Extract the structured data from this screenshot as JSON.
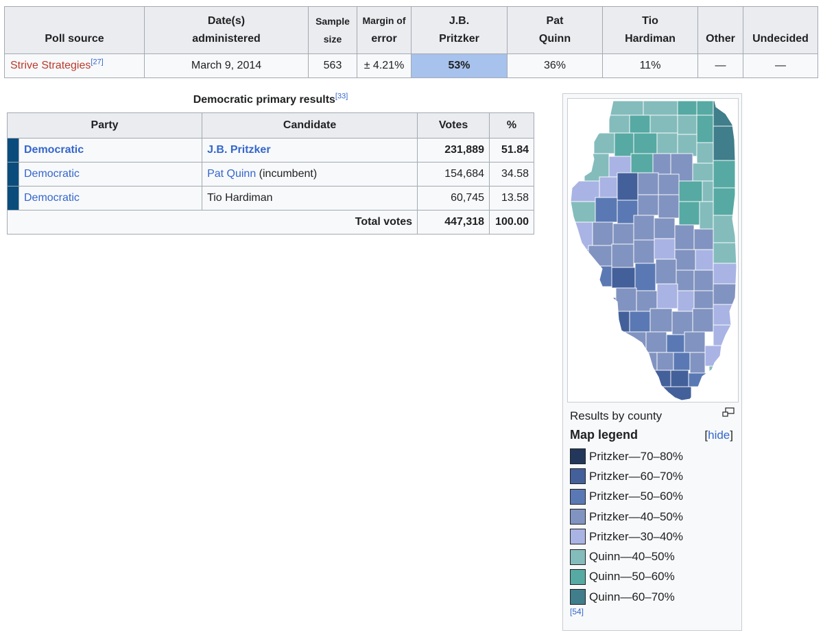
{
  "poll_table": {
    "headers": {
      "source": "Poll source",
      "date_line1": "Date(s)",
      "date_line2": "administered",
      "sample_line1": "Sample",
      "sample_line2": "size",
      "margin_line1": "Margin of",
      "margin_line2": "error",
      "c1_line1": "J.B.",
      "c1_line2": "Pritzker",
      "c2_line1": "Pat",
      "c2_line2": "Quinn",
      "c3_line1": "Tio",
      "c3_line2": "Hardiman",
      "other": "Other",
      "undecided": "Undecided"
    },
    "row": {
      "source": "Strive Strategies",
      "source_ref": "[27]",
      "date": "March 9, 2014",
      "sample": "563",
      "margin": "± 4.21%",
      "pritzker": "53%",
      "quinn": "36%",
      "hardiman": "11%",
      "other": "—",
      "undecided": "—"
    }
  },
  "results": {
    "caption": "Democratic primary results",
    "caption_ref": "[33]",
    "headers": {
      "party": "Party",
      "candidate": "Candidate",
      "votes": "Votes",
      "pct": "%"
    },
    "party_color": "#0a4d7d",
    "rows": [
      {
        "party": "Democratic",
        "candidate": "J.B. Pritzker",
        "candidate_note": "",
        "votes": "231,889",
        "pct": "51.84"
      },
      {
        "party": "Democratic",
        "candidate": "Pat Quinn",
        "candidate_note": " (incumbent)",
        "votes": "154,684",
        "pct": "34.58"
      },
      {
        "party": "Democratic",
        "candidate": "Tio Hardiman",
        "candidate_note": "",
        "votes": "60,745",
        "pct": "13.58"
      }
    ],
    "total": {
      "label": "Total votes",
      "votes": "447,318",
      "pct": "100.00"
    }
  },
  "map": {
    "caption": "Results by county",
    "legend_title": "Map legend",
    "toggle_open": "[",
    "toggle_label": "hide",
    "toggle_close": "]",
    "reference": "[54]",
    "legend": [
      {
        "label": "Pritzker—70–80%",
        "color": "#23375b"
      },
      {
        "label": "Pritzker—60–70%",
        "color": "#44609a"
      },
      {
        "label": "Pritzker—50–60%",
        "color": "#5a79b4"
      },
      {
        "label": "Pritzker—40–50%",
        "color": "#8193c0"
      },
      {
        "label": "Pritzker—30–40%",
        "color": "#a9b4e4"
      },
      {
        "label": "Quinn—40–50%",
        "color": "#84bcbc"
      },
      {
        "label": "Quinn—50–60%",
        "color": "#56aaa3"
      },
      {
        "label": "Quinn—60–70%",
        "color": "#3f7e8a"
      }
    ]
  }
}
